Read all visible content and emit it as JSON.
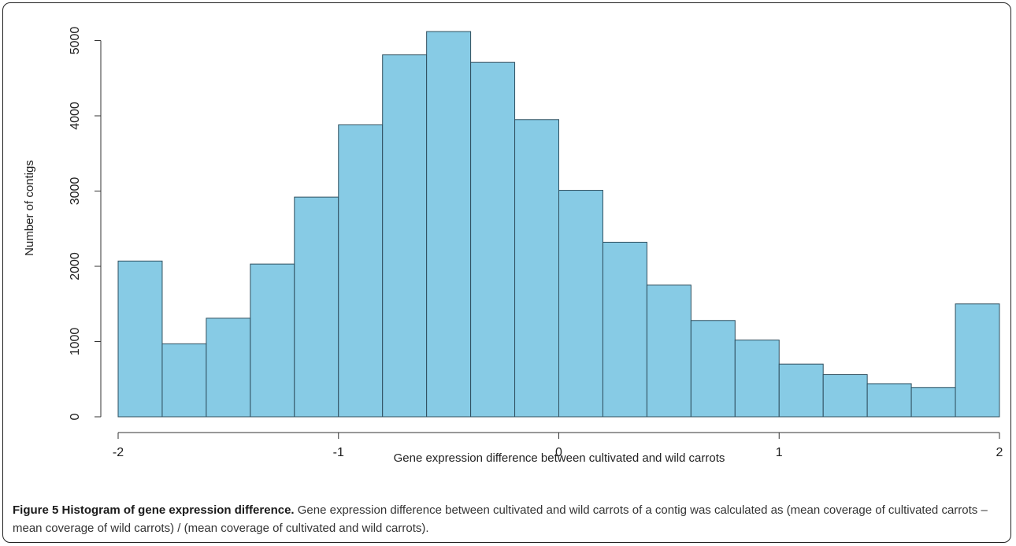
{
  "chart_data": {
    "type": "bar",
    "title": "",
    "xlabel": "Gene expression difference between cultivated and wild carrots",
    "ylabel": "Number of contigs",
    "bin_edges": [
      -2.0,
      -1.8,
      -1.6,
      -1.4,
      -1.2,
      -1.0,
      -0.8,
      -0.6,
      -0.4,
      -0.2,
      0.0,
      0.2,
      0.4,
      0.6,
      0.8,
      1.0,
      1.2,
      1.4,
      1.6,
      1.8,
      2.0
    ],
    "values": [
      2070,
      970,
      1310,
      2030,
      2920,
      3880,
      4810,
      5120,
      4710,
      3950,
      3010,
      2320,
      1750,
      1280,
      1020,
      700,
      560,
      440,
      390,
      1500
    ],
    "xlim": [
      -2,
      2
    ],
    "ylim": [
      0,
      5200
    ],
    "x_ticks": [
      -2,
      -1,
      0,
      1,
      2
    ],
    "y_ticks": [
      0,
      1000,
      2000,
      3000,
      4000,
      5000
    ],
    "grid": false,
    "colors": {
      "bar_fill": "#87CBE5",
      "bar_edge": "#2f4f5f",
      "axis": "#333333"
    }
  },
  "caption": {
    "label": "Figure 5 Histogram of gene expression difference.",
    "text": " Gene expression difference between cultivated and wild carrots of a contig was calculated as (mean coverage of cultivated carrots – mean coverage of wild carrots) / (mean coverage of cultivated and wild carrots)."
  }
}
